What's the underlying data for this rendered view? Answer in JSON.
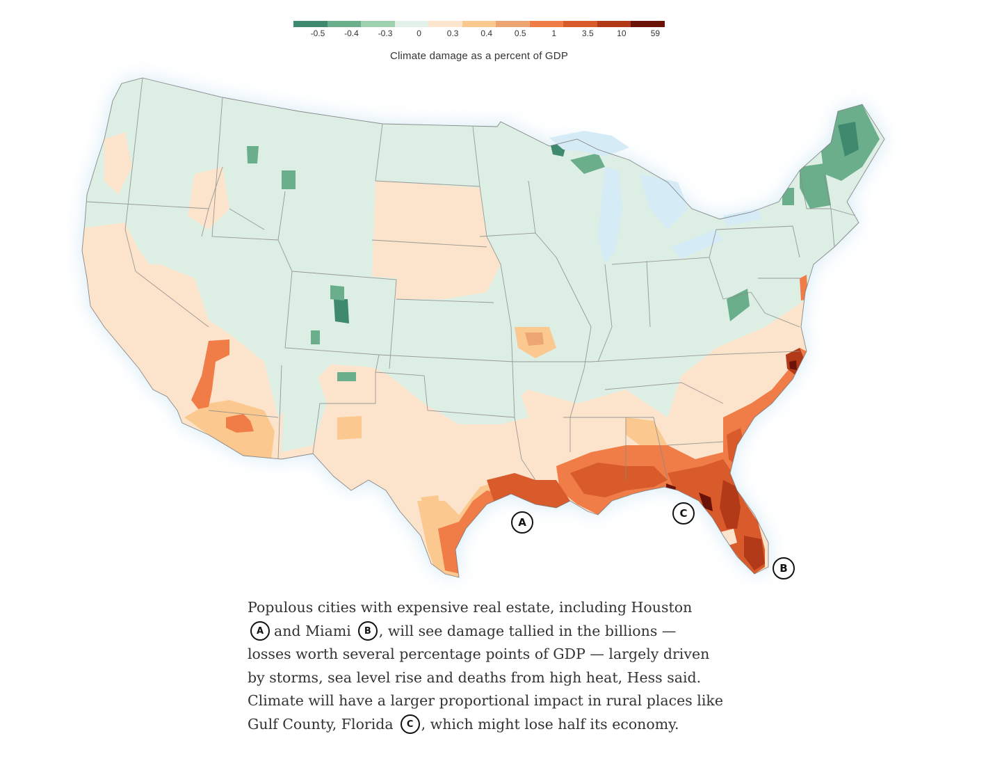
{
  "legend": {
    "title": "Climate damage as a percent of GDP",
    "colors": [
      "#3f8a6f",
      "#6aae8c",
      "#9fd0b0",
      "#e3f1e8",
      "#fde6cd",
      "#fbc98f",
      "#eda574",
      "#f07d48",
      "#d95a2b",
      "#b23a18",
      "#6b1308"
    ],
    "ticks": [
      "-0.5",
      "-0.4",
      "-0.3",
      "0",
      "0.3",
      "0.4",
      "0.5",
      "1",
      "3.5",
      "10",
      "59"
    ]
  },
  "map": {
    "colors": {
      "water": "#d5ebf6",
      "neutral_green": "#ddeee4",
      "neutral_peach": "#fce4cc",
      "light_orange": "#fbc98f",
      "orange": "#f07d48",
      "red_orange": "#d95a2b",
      "dark_red": "#8a2010",
      "green": "#6aae8c",
      "dark_green": "#3f8a6f",
      "state_border": "#8a8a8a"
    }
  },
  "markers": {
    "a": "A",
    "b": "B",
    "c": "C"
  },
  "caption": {
    "line1": "Populous cities with expensive real estate, including Houston",
    "line2_a": "and Miami",
    "line2_b": ", will see damage tallied in the billions —",
    "line3": "losses worth several percentage points of GDP — largely driven",
    "line4": "by storms, sea level rise and deaths from high heat, Hess said.",
    "line5": "Climate will have a larger proportional impact in rural places like",
    "line6_a": "Gulf County, Florida",
    "line6_b": ", which might lose half its economy."
  }
}
